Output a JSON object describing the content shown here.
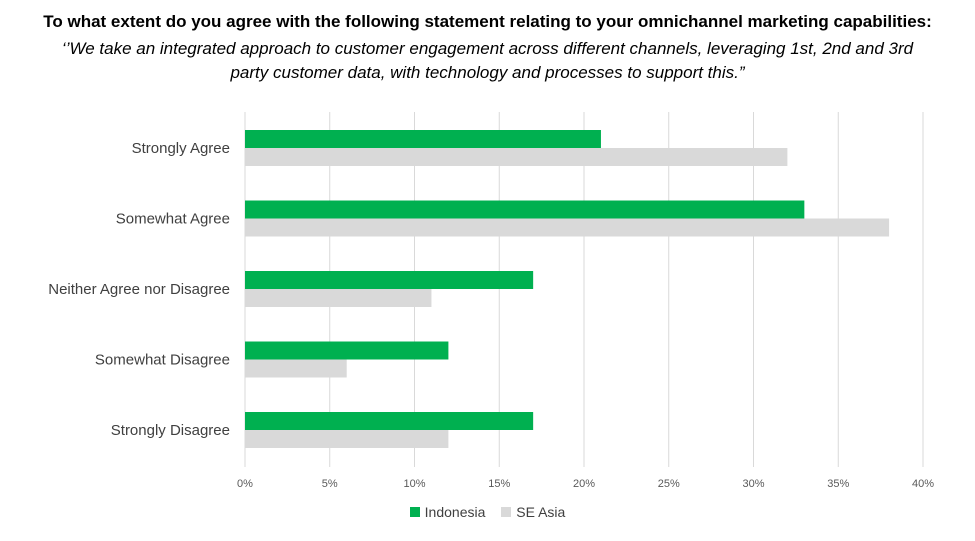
{
  "title": "To what extent do you agree with the following statement relating to your omnichannel marketing capabilities:",
  "subtitle_lines": [
    "‘’We take an integrated approach to customer engagement across different channels, leveraging 1st, 2nd and 3rd",
    "party customer data, with technology and processes to support this.”"
  ],
  "chart_data": {
    "type": "bar",
    "orientation": "horizontal",
    "categories": [
      "Strongly Agree",
      "Somewhat Agree",
      "Neither Agree nor Disagree",
      "Somewhat Disagree",
      "Strongly Disagree"
    ],
    "series": [
      {
        "name": "Indonesia",
        "values": [
          21,
          33,
          17,
          12,
          17
        ],
        "color": "#00b050"
      },
      {
        "name": "SE Asia",
        "values": [
          32,
          38,
          11,
          6,
          12
        ],
        "color": "#d9d9d9"
      }
    ],
    "xlim": [
      0,
      40
    ],
    "ticks": [
      0,
      5,
      10,
      15,
      20,
      25,
      30,
      35,
      40
    ],
    "tick_labels": [
      "0%",
      "5%",
      "10%",
      "15%",
      "20%",
      "25%",
      "30%",
      "35%",
      "40%"
    ],
    "grid": true,
    "gridline_color": "#d9d9d9",
    "legend_position": "bottom"
  }
}
